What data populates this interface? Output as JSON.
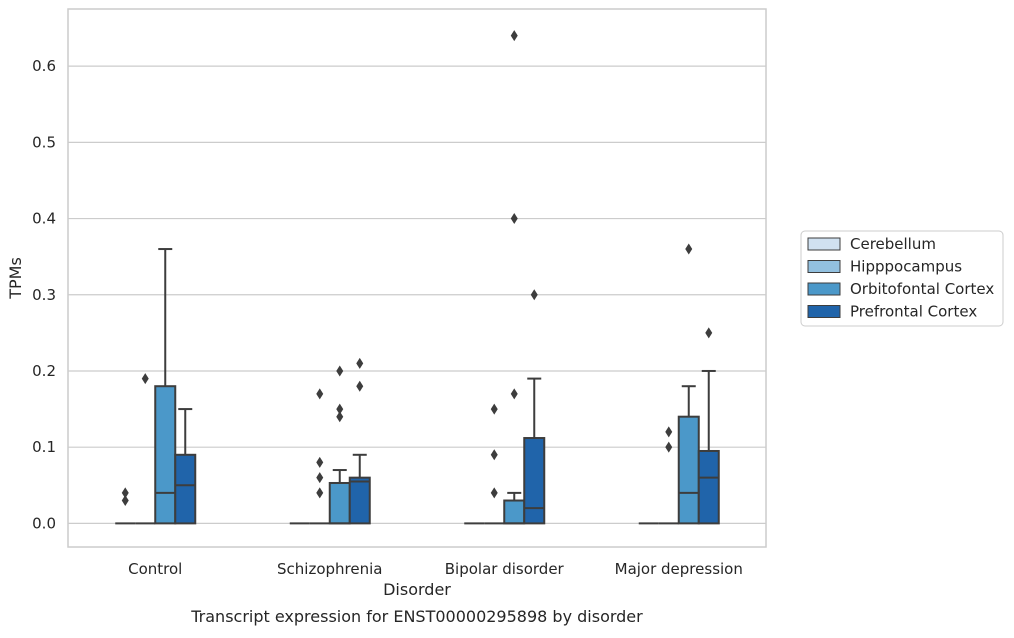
{
  "chart_data": {
    "type": "box",
    "title": "",
    "caption": "Transcript expression for ENST00000295898 by disorder",
    "xlabel": "Disorder",
    "ylabel": "TPMs",
    "ylim": [
      -0.031,
      0.675
    ],
    "yticks": [
      "0.0",
      "0.1",
      "0.2",
      "0.3",
      "0.4",
      "0.5",
      "0.6"
    ],
    "categories": [
      "Control",
      "Schizophrenia",
      "Bipolar disorder",
      "Major depression"
    ],
    "grid": "horizontal",
    "legend_position": "right",
    "series": [
      {
        "name": "Cerebellum",
        "color": "#d0e1f1",
        "boxes": [
          {
            "q1": 0,
            "median": 0,
            "q3": 0,
            "whisker_low": 0,
            "whisker_high": 0,
            "outliers": [
              0.03,
              0.04
            ]
          },
          {
            "q1": 0,
            "median": 0,
            "q3": 0,
            "whisker_low": 0,
            "whisker_high": 0,
            "outliers": []
          },
          {
            "q1": 0,
            "median": 0,
            "q3": 0,
            "whisker_low": 0,
            "whisker_high": 0,
            "outliers": []
          },
          {
            "q1": 0,
            "median": 0,
            "q3": 0,
            "whisker_low": 0,
            "whisker_high": 0,
            "outliers": []
          }
        ]
      },
      {
        "name": "Hipppocampus",
        "color": "#92c0df",
        "boxes": [
          {
            "q1": 0,
            "median": 0,
            "q3": 0,
            "whisker_low": 0,
            "whisker_high": 0,
            "outliers": [
              0.19
            ]
          },
          {
            "q1": 0,
            "median": 0,
            "q3": 0,
            "whisker_low": 0,
            "whisker_high": 0,
            "outliers": [
              0.04,
              0.06,
              0.08,
              0.17
            ]
          },
          {
            "q1": 0,
            "median": 0,
            "q3": 0,
            "whisker_low": 0,
            "whisker_high": 0,
            "outliers": [
              0.04,
              0.09,
              0.15
            ]
          },
          {
            "q1": 0,
            "median": 0,
            "q3": 0,
            "whisker_low": 0,
            "whisker_high": 0,
            "outliers": [
              0.1,
              0.12
            ]
          }
        ]
      },
      {
        "name": "Orbitofontal Cortex",
        "color": "#4b98c9",
        "boxes": [
          {
            "q1": 0,
            "median": 0.04,
            "q3": 0.18,
            "whisker_low": 0,
            "whisker_high": 0.36,
            "outliers": []
          },
          {
            "q1": 0,
            "median": 0,
            "q3": 0.053,
            "whisker_low": 0,
            "whisker_high": 0.07,
            "outliers": [
              0.14,
              0.15,
              0.2
            ]
          },
          {
            "q1": 0,
            "median": 0,
            "q3": 0.03,
            "whisker_low": 0,
            "whisker_high": 0.04,
            "outliers": [
              0.17,
              0.4,
              0.64
            ]
          },
          {
            "q1": 0,
            "median": 0.04,
            "q3": 0.14,
            "whisker_low": 0,
            "whisker_high": 0.18,
            "outliers": [
              0.36
            ]
          }
        ]
      },
      {
        "name": "Prefrontal Cortex",
        "color": "#2064aa",
        "boxes": [
          {
            "q1": 0,
            "median": 0.05,
            "q3": 0.09,
            "whisker_low": 0,
            "whisker_high": 0.15,
            "outliers": []
          },
          {
            "q1": 0,
            "median": 0.055,
            "q3": 0.06,
            "whisker_low": 0,
            "whisker_high": 0.09,
            "outliers": [
              0.18,
              0.21
            ]
          },
          {
            "q1": 0,
            "median": 0.02,
            "q3": 0.112,
            "whisker_low": 0,
            "whisker_high": 0.19,
            "outliers": [
              0.3
            ]
          },
          {
            "q1": 0,
            "median": 0.06,
            "q3": 0.095,
            "whisker_low": 0,
            "whisker_high": 0.2,
            "outliers": [
              0.25
            ]
          }
        ]
      }
    ]
  }
}
